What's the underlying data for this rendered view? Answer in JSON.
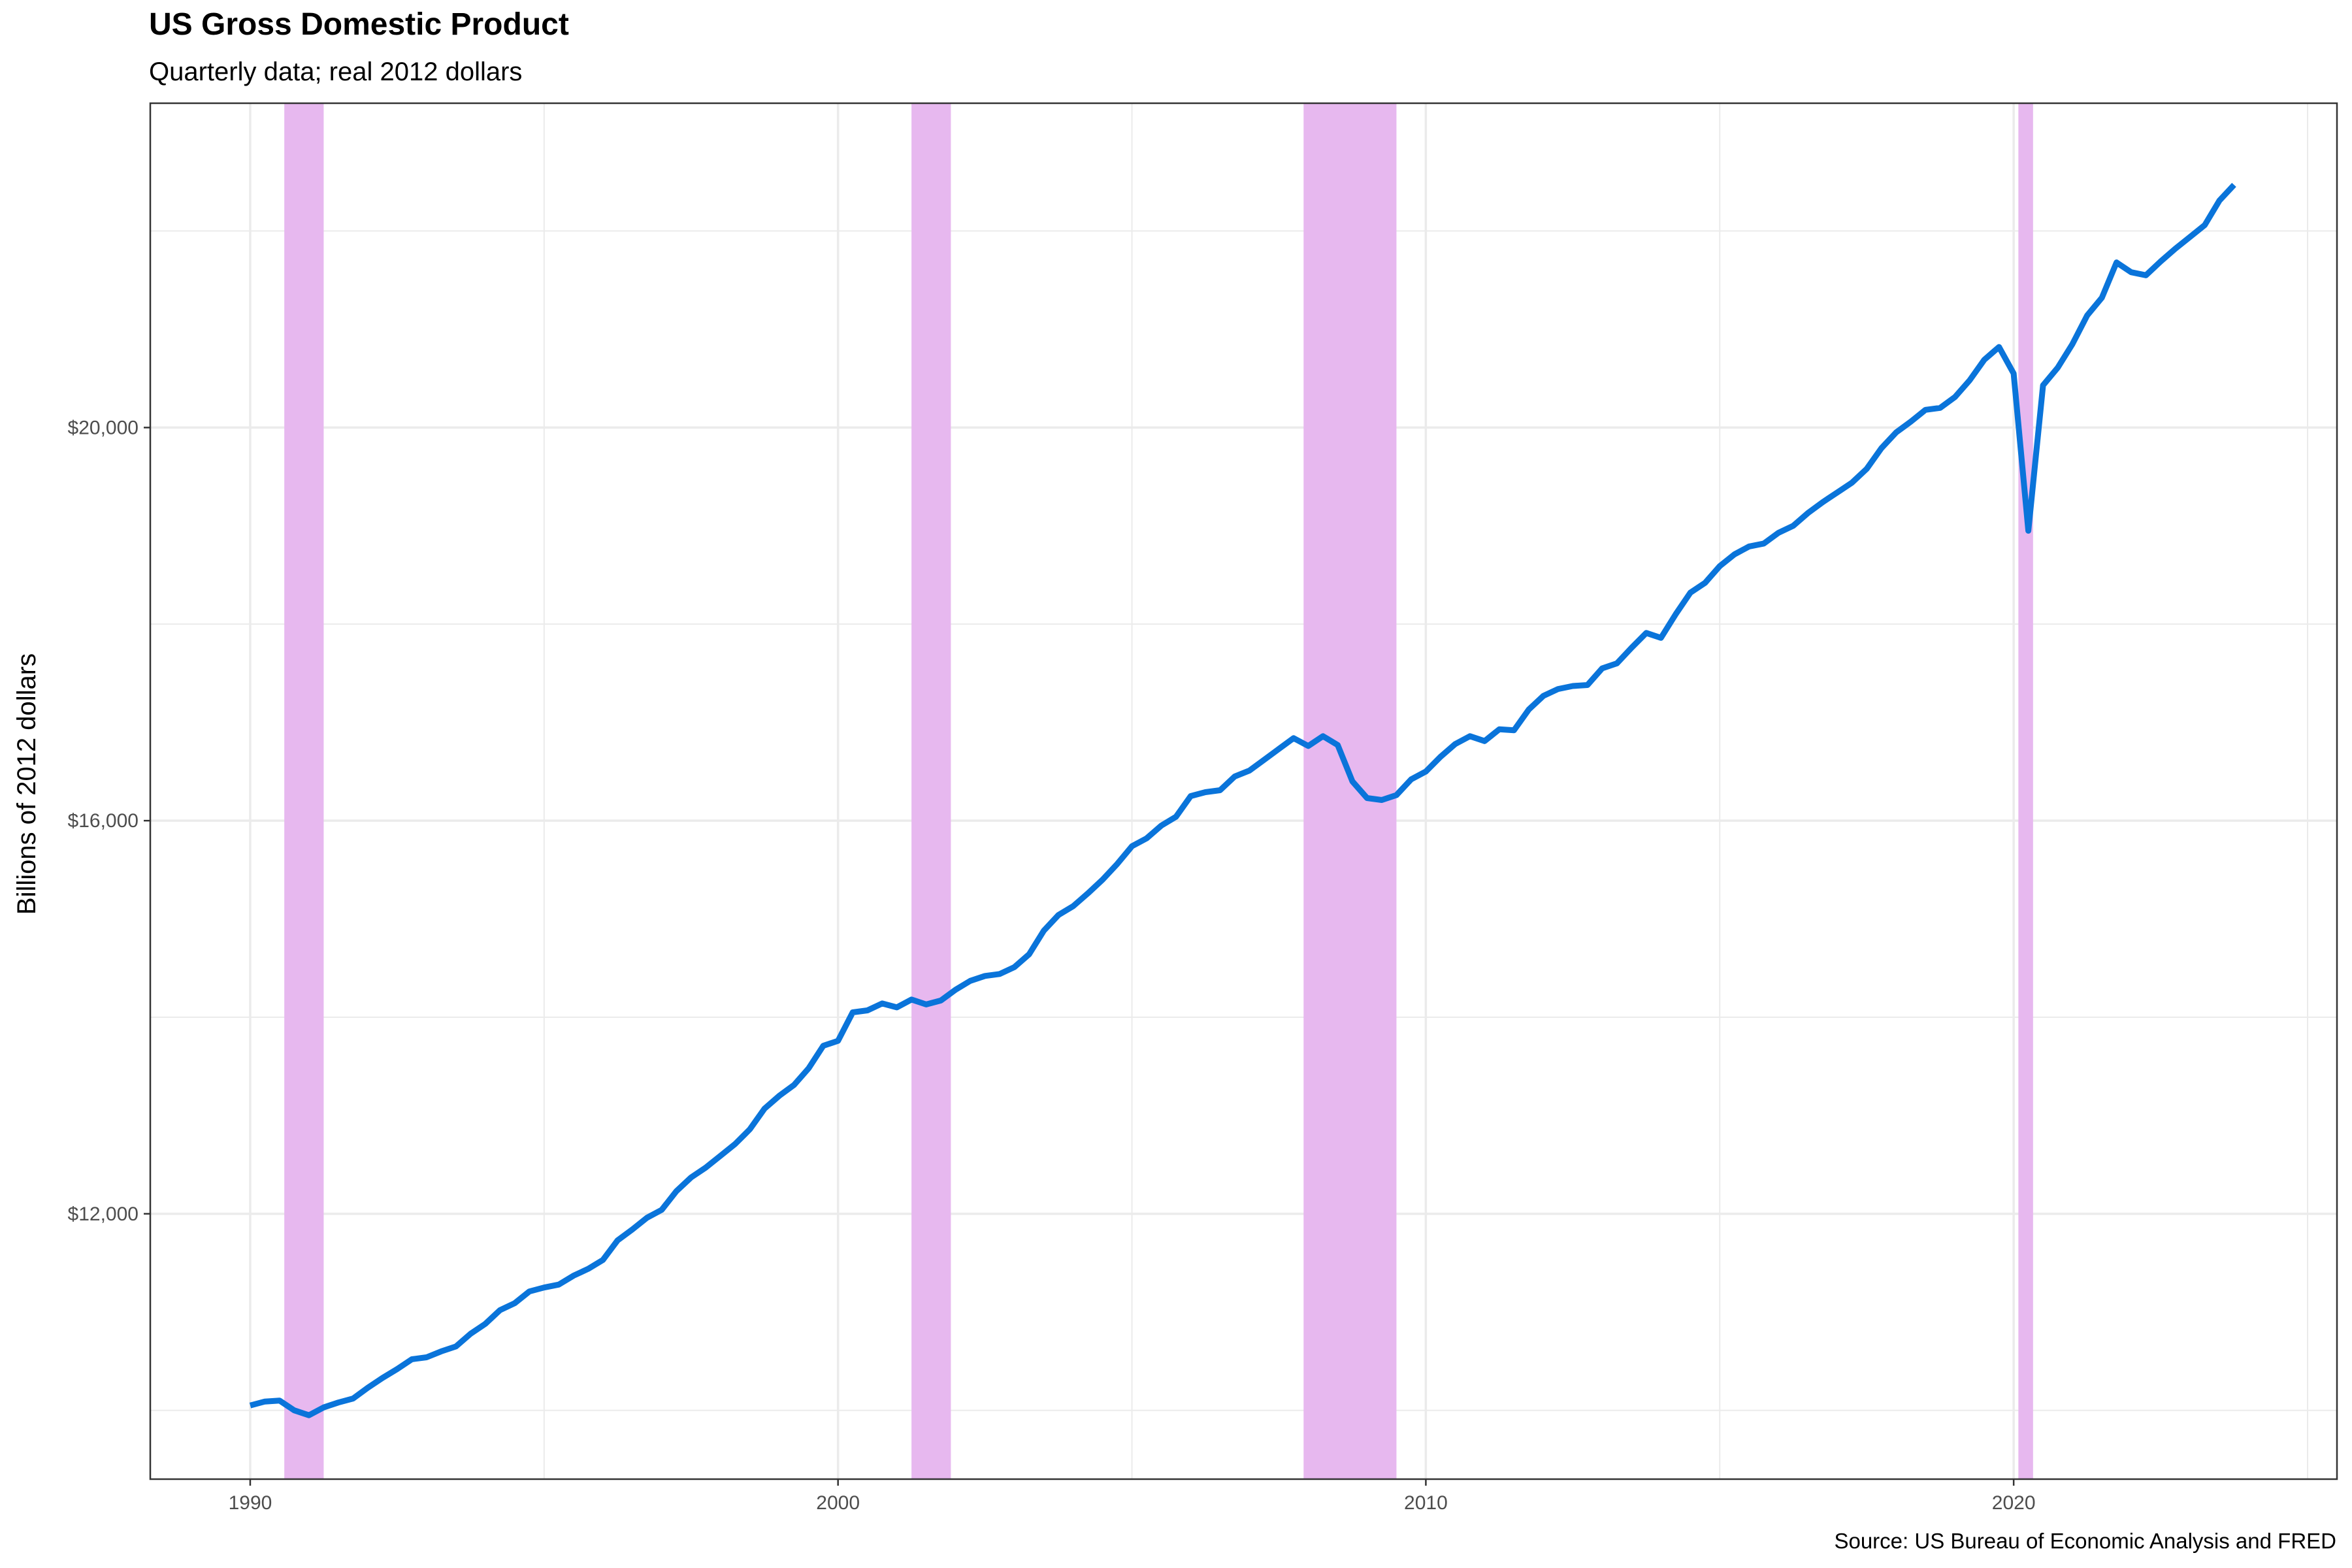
{
  "title": "US Gross Domestic Product",
  "subtitle": "Quarterly data; real 2012 dollars",
  "caption": "Source: US Bureau of Economic Analysis and FRED",
  "colors": {
    "line": "#0a74da",
    "recession": "#e7b8ef",
    "grid": "#ebebeb",
    "panel_border": "#333333"
  },
  "chart_data": {
    "type": "line",
    "xlabel": "",
    "ylabel": "Billions of 2012 dollars",
    "xlim": [
      1988.3,
      2025.5
    ],
    "ylim": [
      9300,
      23300
    ],
    "x_ticks": [
      1990,
      2000,
      2010,
      2020
    ],
    "x_tick_labels": [
      "1990",
      "2000",
      "2010",
      "2020"
    ],
    "y_ticks": [
      12000,
      16000,
      20000
    ],
    "y_tick_labels": [
      "$12,000",
      "$16,000",
      "$20,000"
    ],
    "grid": true,
    "legend": "none",
    "recessions": [
      {
        "start": 1990.58,
        "end": 1991.25
      },
      {
        "start": 2001.25,
        "end": 2001.92
      },
      {
        "start": 2007.92,
        "end": 2009.5
      },
      {
        "start": 2020.08,
        "end": 2020.33
      }
    ],
    "series": [
      {
        "values": [
          [
            1990.0,
            10050
          ],
          [
            1990.25,
            10090
          ],
          [
            1990.5,
            10100
          ],
          [
            1990.75,
            10000
          ],
          [
            1991.0,
            9950
          ],
          [
            1991.25,
            10030
          ],
          [
            1991.5,
            10080
          ],
          [
            1991.75,
            10120
          ],
          [
            1992.0,
            10230
          ],
          [
            1992.25,
            10330
          ],
          [
            1992.5,
            10420
          ],
          [
            1992.75,
            10520
          ],
          [
            1993.0,
            10540
          ],
          [
            1993.25,
            10600
          ],
          [
            1993.5,
            10650
          ],
          [
            1993.75,
            10780
          ],
          [
            1994.0,
            10880
          ],
          [
            1994.25,
            11020
          ],
          [
            1994.5,
            11090
          ],
          [
            1994.75,
            11210
          ],
          [
            1995.0,
            11250
          ],
          [
            1995.25,
            11280
          ],
          [
            1995.5,
            11370
          ],
          [
            1995.75,
            11440
          ],
          [
            1996.0,
            11530
          ],
          [
            1996.25,
            11730
          ],
          [
            1996.5,
            11840
          ],
          [
            1996.75,
            11960
          ],
          [
            1997.0,
            12040
          ],
          [
            1997.25,
            12230
          ],
          [
            1997.5,
            12370
          ],
          [
            1997.75,
            12470
          ],
          [
            1998.0,
            12590
          ],
          [
            1998.25,
            12710
          ],
          [
            1998.5,
            12860
          ],
          [
            1998.75,
            13070
          ],
          [
            1999.0,
            13200
          ],
          [
            1999.25,
            13310
          ],
          [
            1999.5,
            13480
          ],
          [
            1999.75,
            13710
          ],
          [
            2000.0,
            13760
          ],
          [
            2000.25,
            14050
          ],
          [
            2000.5,
            14070
          ],
          [
            2000.75,
            14140
          ],
          [
            2001.0,
            14100
          ],
          [
            2001.25,
            14180
          ],
          [
            2001.5,
            14130
          ],
          [
            2001.75,
            14170
          ],
          [
            2002.0,
            14280
          ],
          [
            2002.25,
            14370
          ],
          [
            2002.5,
            14420
          ],
          [
            2002.75,
            14440
          ],
          [
            2003.0,
            14510
          ],
          [
            2003.25,
            14640
          ],
          [
            2003.5,
            14880
          ],
          [
            2003.75,
            15040
          ],
          [
            2004.0,
            15130
          ],
          [
            2004.25,
            15260
          ],
          [
            2004.5,
            15400
          ],
          [
            2004.75,
            15560
          ],
          [
            2005.0,
            15740
          ],
          [
            2005.25,
            15820
          ],
          [
            2005.5,
            15950
          ],
          [
            2005.75,
            16040
          ],
          [
            2006.0,
            16250
          ],
          [
            2006.25,
            16290
          ],
          [
            2006.5,
            16310
          ],
          [
            2006.75,
            16450
          ],
          [
            2007.0,
            16510
          ],
          [
            2007.25,
            16620
          ],
          [
            2007.5,
            16730
          ],
          [
            2007.75,
            16840
          ],
          [
            2008.0,
            16760
          ],
          [
            2008.25,
            16860
          ],
          [
            2008.5,
            16770
          ],
          [
            2008.75,
            16400
          ],
          [
            2009.0,
            16230
          ],
          [
            2009.25,
            16210
          ],
          [
            2009.5,
            16260
          ],
          [
            2009.75,
            16420
          ],
          [
            2010.0,
            16500
          ],
          [
            2010.25,
            16650
          ],
          [
            2010.5,
            16780
          ],
          [
            2010.75,
            16860
          ],
          [
            2011.0,
            16810
          ],
          [
            2011.25,
            16930
          ],
          [
            2011.5,
            16920
          ],
          [
            2011.75,
            17130
          ],
          [
            2012.0,
            17270
          ],
          [
            2012.25,
            17340
          ],
          [
            2012.5,
            17370
          ],
          [
            2012.75,
            17380
          ],
          [
            2013.0,
            17550
          ],
          [
            2013.25,
            17600
          ],
          [
            2013.5,
            17760
          ],
          [
            2013.75,
            17910
          ],
          [
            2014.0,
            17860
          ],
          [
            2014.25,
            18100
          ],
          [
            2014.5,
            18320
          ],
          [
            2014.75,
            18420
          ],
          [
            2015.0,
            18590
          ],
          [
            2015.25,
            18710
          ],
          [
            2015.5,
            18790
          ],
          [
            2015.75,
            18820
          ],
          [
            2016.0,
            18930
          ],
          [
            2016.25,
            19000
          ],
          [
            2016.5,
            19130
          ],
          [
            2016.75,
            19240
          ],
          [
            2017.0,
            19340
          ],
          [
            2017.25,
            19440
          ],
          [
            2017.5,
            19580
          ],
          [
            2017.75,
            19790
          ],
          [
            2018.0,
            19950
          ],
          [
            2018.25,
            20060
          ],
          [
            2018.5,
            20180
          ],
          [
            2018.75,
            20200
          ],
          [
            2019.0,
            20310
          ],
          [
            2019.25,
            20480
          ],
          [
            2019.5,
            20690
          ],
          [
            2019.75,
            20820
          ],
          [
            2020.0,
            20550
          ],
          [
            2020.25,
            18950
          ],
          [
            2020.5,
            20430
          ],
          [
            2020.75,
            20610
          ],
          [
            2021.0,
            20850
          ],
          [
            2021.25,
            21140
          ],
          [
            2021.5,
            21320
          ],
          [
            2021.75,
            21680
          ],
          [
            2022.0,
            21580
          ],
          [
            2022.25,
            21550
          ],
          [
            2022.5,
            21690
          ],
          [
            2022.75,
            21820
          ],
          [
            2023.0,
            21940
          ],
          [
            2023.25,
            22060
          ],
          [
            2023.5,
            22310
          ],
          [
            2023.75,
            22470
          ]
        ]
      }
    ]
  }
}
